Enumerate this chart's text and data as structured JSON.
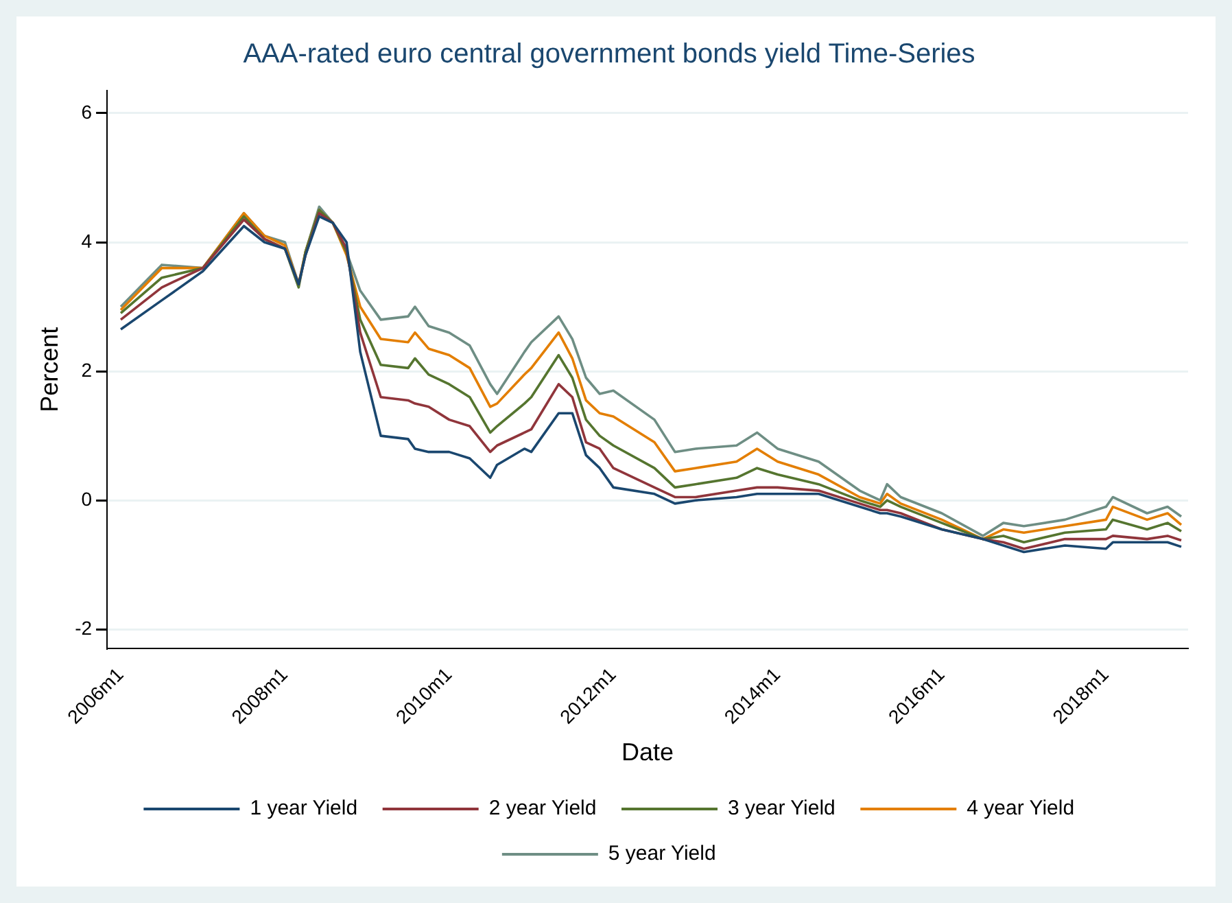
{
  "chart_data": {
    "type": "line",
    "title": "AAA-rated euro central government bonds yield Time-Series",
    "xlabel": "Date",
    "ylabel": "Percent",
    "x": [
      "2006-01",
      "2006-07",
      "2007-01",
      "2007-07",
      "2007-10",
      "2008-01",
      "2008-03",
      "2008-04",
      "2008-06",
      "2008-08",
      "2008-10",
      "2008-12",
      "2009-03",
      "2009-07",
      "2009-08",
      "2009-10",
      "2010-01",
      "2010-04",
      "2010-07",
      "2010-08",
      "2010-12",
      "2011-01",
      "2011-05",
      "2011-07",
      "2011-09",
      "2011-11",
      "2012-01",
      "2012-07",
      "2012-10",
      "2013-01",
      "2013-07",
      "2013-10",
      "2014-01",
      "2014-07",
      "2015-01",
      "2015-04",
      "2015-05",
      "2015-07",
      "2016-01",
      "2016-07",
      "2016-10",
      "2017-01",
      "2017-07",
      "2018-01",
      "2018-02",
      "2018-07",
      "2018-10",
      "2018-12"
    ],
    "series": [
      {
        "name": "1 year Yield",
        "color": "#1a476f",
        "values": [
          2.65,
          3.1,
          3.55,
          4.25,
          4.0,
          3.9,
          3.35,
          3.8,
          4.4,
          4.3,
          4.0,
          2.3,
          1.0,
          0.95,
          0.8,
          0.75,
          0.75,
          0.65,
          0.35,
          0.55,
          0.8,
          0.75,
          1.35,
          1.35,
          0.7,
          0.5,
          0.2,
          0.1,
          -0.05,
          0.0,
          0.05,
          0.1,
          0.1,
          0.1,
          -0.1,
          -0.2,
          -0.2,
          -0.25,
          -0.45,
          -0.6,
          -0.7,
          -0.8,
          -0.7,
          -0.75,
          -0.65,
          -0.65,
          -0.65,
          -0.72
        ]
      },
      {
        "name": "2 year Yield",
        "color": "#90353b",
        "values": [
          2.8,
          3.3,
          3.6,
          4.35,
          4.05,
          3.9,
          3.35,
          3.8,
          4.45,
          4.3,
          3.9,
          2.6,
          1.6,
          1.55,
          1.5,
          1.45,
          1.25,
          1.15,
          0.75,
          0.85,
          1.05,
          1.1,
          1.8,
          1.6,
          0.9,
          0.8,
          0.5,
          0.2,
          0.05,
          0.05,
          0.15,
          0.2,
          0.2,
          0.15,
          -0.05,
          -0.15,
          -0.15,
          -0.2,
          -0.45,
          -0.6,
          -0.65,
          -0.75,
          -0.6,
          -0.6,
          -0.55,
          -0.6,
          -0.55,
          -0.62
        ]
      },
      {
        "name": "3 year Yield",
        "color": "#55752f",
        "values": [
          2.9,
          3.45,
          3.6,
          4.4,
          4.05,
          3.9,
          3.3,
          3.85,
          4.5,
          4.3,
          3.85,
          2.8,
          2.1,
          2.05,
          2.2,
          1.95,
          1.8,
          1.6,
          1.05,
          1.15,
          1.5,
          1.6,
          2.25,
          1.9,
          1.25,
          1.0,
          0.85,
          0.5,
          0.2,
          0.25,
          0.35,
          0.5,
          0.4,
          0.25,
          0.0,
          -0.1,
          0.0,
          -0.1,
          -0.35,
          -0.6,
          -0.55,
          -0.65,
          -0.5,
          -0.45,
          -0.3,
          -0.45,
          -0.35,
          -0.48
        ]
      },
      {
        "name": "4 year Yield",
        "color": "#e37e00",
        "values": [
          2.95,
          3.6,
          3.6,
          4.45,
          4.1,
          3.95,
          3.35,
          3.85,
          4.5,
          4.3,
          3.8,
          3.0,
          2.5,
          2.45,
          2.6,
          2.35,
          2.25,
          2.05,
          1.45,
          1.5,
          1.95,
          2.05,
          2.6,
          2.2,
          1.55,
          1.35,
          1.3,
          0.9,
          0.45,
          0.5,
          0.6,
          0.8,
          0.6,
          0.4,
          0.05,
          -0.05,
          0.1,
          -0.05,
          -0.3,
          -0.6,
          -0.45,
          -0.5,
          -0.4,
          -0.3,
          -0.1,
          -0.3,
          -0.2,
          -0.38
        ]
      },
      {
        "name": "5 year Yield",
        "color": "#6e8e84",
        "values": [
          3.0,
          3.65,
          3.6,
          4.45,
          4.1,
          4.0,
          3.35,
          3.85,
          4.55,
          4.3,
          3.85,
          3.25,
          2.8,
          2.85,
          3.0,
          2.7,
          2.6,
          2.4,
          1.8,
          1.65,
          2.3,
          2.45,
          2.85,
          2.5,
          1.9,
          1.65,
          1.7,
          1.25,
          0.75,
          0.8,
          0.85,
          1.05,
          0.8,
          0.6,
          0.15,
          0.0,
          0.25,
          0.05,
          -0.2,
          -0.55,
          -0.35,
          -0.4,
          -0.3,
          -0.1,
          0.05,
          -0.2,
          -0.1,
          -0.25
        ]
      }
    ],
    "xlim": [
      "2005-11",
      "2019-01"
    ],
    "xticks": [
      {
        "value": "2006-01",
        "label": "2006m1"
      },
      {
        "value": "2008-01",
        "label": "2008m1"
      },
      {
        "value": "2010-01",
        "label": "2010m1"
      },
      {
        "value": "2012-01",
        "label": "2012m1"
      },
      {
        "value": "2014-01",
        "label": "2014m1"
      },
      {
        "value": "2016-01",
        "label": "2016m1"
      },
      {
        "value": "2018-01",
        "label": "2018m1"
      }
    ],
    "ylim": [
      -2.3,
      6.35
    ],
    "yticks": [
      -2,
      0,
      2,
      4,
      6
    ],
    "grid": "y",
    "legend": "bottom",
    "marker": "none",
    "line_style": "solid"
  }
}
